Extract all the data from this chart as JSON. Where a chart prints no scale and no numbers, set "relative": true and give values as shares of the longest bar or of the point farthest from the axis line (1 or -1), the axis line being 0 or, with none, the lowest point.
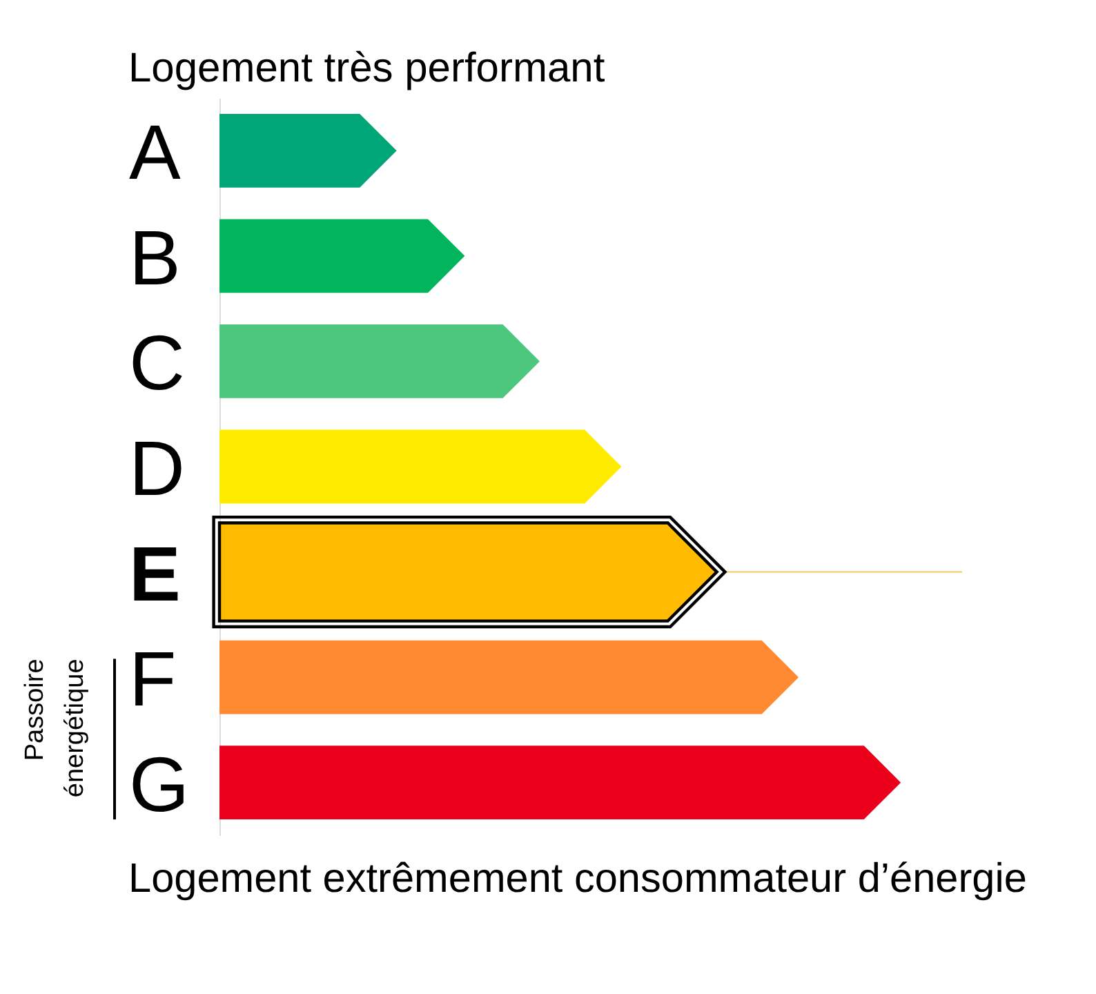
{
  "chart_data": {
    "type": "bar",
    "orientation": "horizontal",
    "relative": true,
    "title": "Logement très performant",
    "categories": [
      "A",
      "B",
      "C",
      "D",
      "E",
      "F",
      "G"
    ],
    "values": [
      0.26,
      0.36,
      0.47,
      0.59,
      0.73,
      0.85,
      1
    ],
    "colors": [
      "#00a677",
      "#00b55b",
      "#4dc77e",
      "#ffeb00",
      "#ffbb00",
      "#ff8a31",
      "#eb001c"
    ],
    "ref_lines": [
      {
        "axis": "y",
        "value": "E",
        "color": "#f5c75a"
      }
    ],
    "annotations": [
      "Passoire énergétique",
      "Logement extrêmement consommateur d’énergie"
    ]
  }
}
